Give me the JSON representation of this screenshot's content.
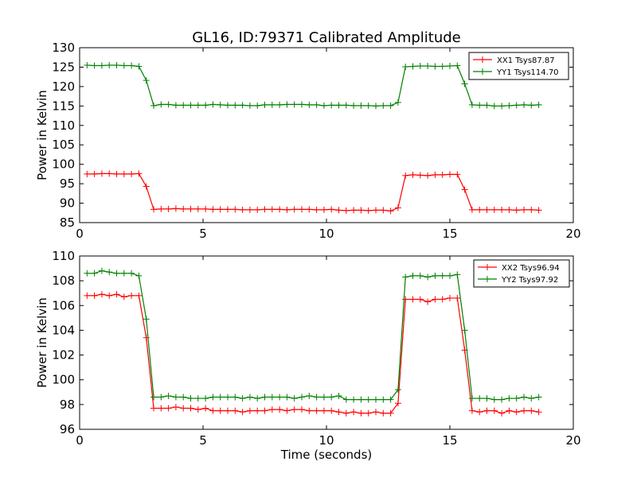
{
  "figure": {
    "title": "GL16, ID:79371 Calibrated Amplitude"
  },
  "colors": {
    "red": "#ff0000",
    "green": "#008000",
    "axis": "#000000"
  },
  "chart_data": [
    {
      "type": "line",
      "title": "GL16, ID:79371 Calibrated Amplitude",
      "xlabel": "",
      "ylabel": "Power in Kelvin",
      "xlim": [
        0,
        20
      ],
      "ylim": [
        85,
        130
      ],
      "xticks": [
        0,
        5,
        10,
        15,
        20
      ],
      "yticks": [
        85,
        90,
        95,
        100,
        105,
        110,
        115,
        120,
        125,
        130
      ],
      "grid": false,
      "legend_position": "top-right",
      "x": [
        0.3,
        0.6,
        0.9,
        1.2,
        1.5,
        1.8,
        2.1,
        2.4,
        2.7,
        3.0,
        3.3,
        3.6,
        3.9,
        4.2,
        4.5,
        4.8,
        5.1,
        5.4,
        5.7,
        6.0,
        6.3,
        6.6,
        6.9,
        7.2,
        7.5,
        7.8,
        8.1,
        8.4,
        8.7,
        9.0,
        9.3,
        9.6,
        9.9,
        10.2,
        10.5,
        10.8,
        11.1,
        11.4,
        11.7,
        12.0,
        12.3,
        12.6,
        12.9,
        13.2,
        13.5,
        13.8,
        14.1,
        14.4,
        14.7,
        15.0,
        15.3,
        15.6,
        15.9,
        16.2,
        16.5,
        16.8,
        17.1,
        17.4,
        17.7,
        18.0,
        18.3,
        18.6
      ],
      "series": [
        {
          "name": "XX1 Tsys87.87",
          "color": "#ff0000",
          "values": [
            97.5,
            97.5,
            97.6,
            97.6,
            97.5,
            97.5,
            97.5,
            97.6,
            94.3,
            88.4,
            88.5,
            88.5,
            88.6,
            88.5,
            88.5,
            88.5,
            88.5,
            88.4,
            88.4,
            88.4,
            88.4,
            88.3,
            88.3,
            88.3,
            88.4,
            88.4,
            88.4,
            88.3,
            88.4,
            88.4,
            88.4,
            88.3,
            88.3,
            88.4,
            88.2,
            88.1,
            88.2,
            88.2,
            88.1,
            88.2,
            88.2,
            88.0,
            88.8,
            97.1,
            97.3,
            97.2,
            97.1,
            97.3,
            97.3,
            97.4,
            97.4,
            93.5,
            88.3,
            88.3,
            88.3,
            88.3,
            88.3,
            88.3,
            88.2,
            88.3,
            88.3,
            88.2
          ]
        },
        {
          "name": "YY1 Tsys114.70",
          "color": "#008000",
          "values": [
            125.5,
            125.4,
            125.4,
            125.5,
            125.5,
            125.4,
            125.4,
            125.2,
            121.6,
            115.1,
            115.4,
            115.4,
            115.2,
            115.2,
            115.2,
            115.2,
            115.2,
            115.4,
            115.3,
            115.2,
            115.2,
            115.2,
            115.1,
            115.1,
            115.3,
            115.3,
            115.3,
            115.4,
            115.4,
            115.4,
            115.3,
            115.3,
            115.1,
            115.2,
            115.2,
            115.2,
            115.1,
            115.1,
            115.1,
            115.0,
            115.1,
            115.1,
            115.9,
            125.1,
            125.2,
            125.3,
            125.3,
            125.2,
            125.2,
            125.3,
            125.4,
            120.7,
            115.3,
            115.2,
            115.2,
            115.0,
            115.0,
            115.1,
            115.2,
            115.3,
            115.2,
            115.3
          ]
        }
      ]
    },
    {
      "type": "line",
      "title": "",
      "xlabel": "Time (seconds)",
      "ylabel": "Power in Kelvin",
      "xlim": [
        0,
        20
      ],
      "ylim": [
        96,
        110
      ],
      "xticks": [
        0,
        5,
        10,
        15,
        20
      ],
      "yticks": [
        96,
        98,
        100,
        102,
        104,
        106,
        108,
        110
      ],
      "grid": false,
      "legend_position": "top-right",
      "x": [
        0.3,
        0.6,
        0.9,
        1.2,
        1.5,
        1.8,
        2.1,
        2.4,
        2.7,
        3.0,
        3.3,
        3.6,
        3.9,
        4.2,
        4.5,
        4.8,
        5.1,
        5.4,
        5.7,
        6.0,
        6.3,
        6.6,
        6.9,
        7.2,
        7.5,
        7.8,
        8.1,
        8.4,
        8.7,
        9.0,
        9.3,
        9.6,
        9.9,
        10.2,
        10.5,
        10.8,
        11.1,
        11.4,
        11.7,
        12.0,
        12.3,
        12.6,
        12.9,
        13.2,
        13.5,
        13.8,
        14.1,
        14.4,
        14.7,
        15.0,
        15.3,
        15.6,
        15.9,
        16.2,
        16.5,
        16.8,
        17.1,
        17.4,
        17.7,
        18.0,
        18.3,
        18.6
      ],
      "series": [
        {
          "name": "XX2 Tsys96.94",
          "color": "#ff0000",
          "values": [
            106.8,
            106.8,
            106.9,
            106.8,
            106.9,
            106.7,
            106.8,
            106.8,
            103.4,
            97.7,
            97.7,
            97.7,
            97.8,
            97.7,
            97.7,
            97.6,
            97.7,
            97.5,
            97.5,
            97.5,
            97.5,
            97.4,
            97.5,
            97.5,
            97.5,
            97.6,
            97.6,
            97.5,
            97.6,
            97.6,
            97.5,
            97.5,
            97.5,
            97.5,
            97.4,
            97.3,
            97.4,
            97.3,
            97.3,
            97.4,
            97.3,
            97.3,
            98.1,
            106.5,
            106.5,
            106.5,
            106.3,
            106.5,
            106.5,
            106.6,
            106.6,
            102.4,
            97.5,
            97.4,
            97.5,
            97.5,
            97.3,
            97.5,
            97.4,
            97.5,
            97.5,
            97.4
          ]
        },
        {
          "name": "YY2 Tsys97.92",
          "color": "#008000",
          "values": [
            108.6,
            108.6,
            108.8,
            108.7,
            108.6,
            108.6,
            108.6,
            108.4,
            104.9,
            98.6,
            98.6,
            98.7,
            98.6,
            98.6,
            98.5,
            98.5,
            98.5,
            98.6,
            98.6,
            98.6,
            98.6,
            98.5,
            98.6,
            98.5,
            98.6,
            98.6,
            98.6,
            98.6,
            98.5,
            98.6,
            98.7,
            98.6,
            98.6,
            98.6,
            98.7,
            98.4,
            98.4,
            98.4,
            98.4,
            98.4,
            98.4,
            98.4,
            99.2,
            108.3,
            108.4,
            108.4,
            108.3,
            108.4,
            108.4,
            108.4,
            108.5,
            104.0,
            98.5,
            98.5,
            98.5,
            98.4,
            98.4,
            98.5,
            98.5,
            98.6,
            98.5,
            98.6
          ]
        }
      ]
    }
  ]
}
